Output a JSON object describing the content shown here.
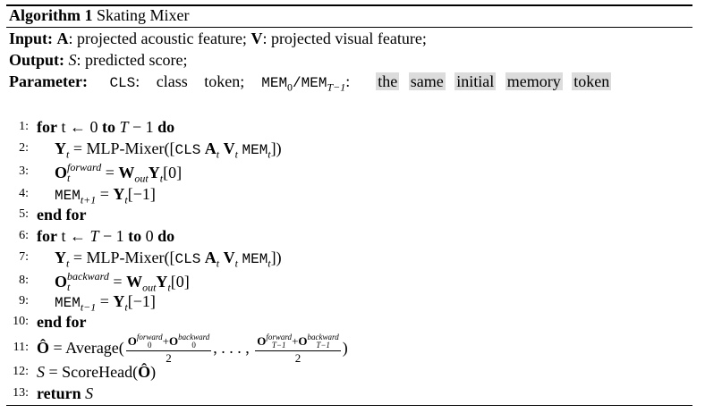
{
  "header": {
    "label": "Algorithm 1",
    "title": "Skating Mixer"
  },
  "io": {
    "input_label": "Input:",
    "input_A": "A",
    "input_A_desc": ": projected acoustic feature;",
    "input_V": "V",
    "input_V_desc": ": projected visual feature;",
    "output_label": "Output:",
    "output_S": "S",
    "output_desc": ": predicted score;",
    "param_label": "Parameter:",
    "param_cls": "CLS",
    "param_cls_desc": ": class token;",
    "param_mem": "MEM",
    "param_mem_sub0": "0",
    "param_mem_slash": "/MEM",
    "param_mem_sub1": "T−1",
    "param_colon": ":",
    "param_desc_words": [
      "the",
      "same",
      "initial",
      "memory",
      "token"
    ]
  },
  "lines": [
    {
      "n": "1:",
      "kw_for": "for",
      "var": "t",
      "arrow": "←",
      "start": "0",
      "kw_to": "to",
      "end_T": "T",
      "end_rest": "− 1",
      "kw_do": "do"
    },
    {
      "n": "2:",
      "Y": "Y",
      "sub_t": "t",
      "eq": "= MLP-Mixer([",
      "cls": "CLS",
      "A": "A",
      "V": "V",
      "mem": "MEM",
      "close": "])"
    },
    {
      "n": "3:",
      "O": "O",
      "sup": "forward",
      "sub_t": "t",
      "eq": "=",
      "W": "W",
      "w_sub": "out",
      "Y": "Y",
      "idx": "[0]"
    },
    {
      "n": "4:",
      "mem": "MEM",
      "sub": "t+1",
      "eq": "=",
      "Y": "Y",
      "sub_t": "t",
      "idx": "[−1]"
    },
    {
      "n": "5:",
      "kw": "end for"
    },
    {
      "n": "6:",
      "kw_for": "for",
      "var": "t",
      "arrow": "←",
      "start_T": "T",
      "start_rest": "− 1",
      "kw_to": "to",
      "end": "0",
      "kw_do": "do"
    },
    {
      "n": "7:",
      "Y": "Y",
      "sub_t": "t",
      "eq": "= MLP-Mixer([",
      "cls": "CLS",
      "A": "A",
      "V": "V",
      "mem": "MEM",
      "close": "])"
    },
    {
      "n": "8:",
      "O": "O",
      "sup": "backward",
      "sub_t": "t",
      "eq": "=",
      "W": "W",
      "w_sub": "out",
      "Y": "Y",
      "idx": "[0]"
    },
    {
      "n": "9:",
      "mem": "MEM",
      "sub": "t−1",
      "eq": "=",
      "Y": "Y",
      "sub_t": "t",
      "idx": "[−1]"
    },
    {
      "n": "10:",
      "kw": "end for"
    },
    {
      "n": "11:",
      "Ohat": "Ô",
      "eq": "= Average(",
      "f1_O": "O",
      "f1_sup1": "forward",
      "f1_sub": "0",
      "plus": "+",
      "f1_sup2": "backward",
      "den": "2",
      "dots": ", . . . ,",
      "f2_sub": "T−1",
      "close": ")"
    },
    {
      "n": "12:",
      "S": "S",
      "eq": "=",
      "fn": "ScoreHead(",
      "Ohat": "Ô",
      "close": ")"
    },
    {
      "n": "13:",
      "kw": "return",
      "S": "S"
    }
  ]
}
